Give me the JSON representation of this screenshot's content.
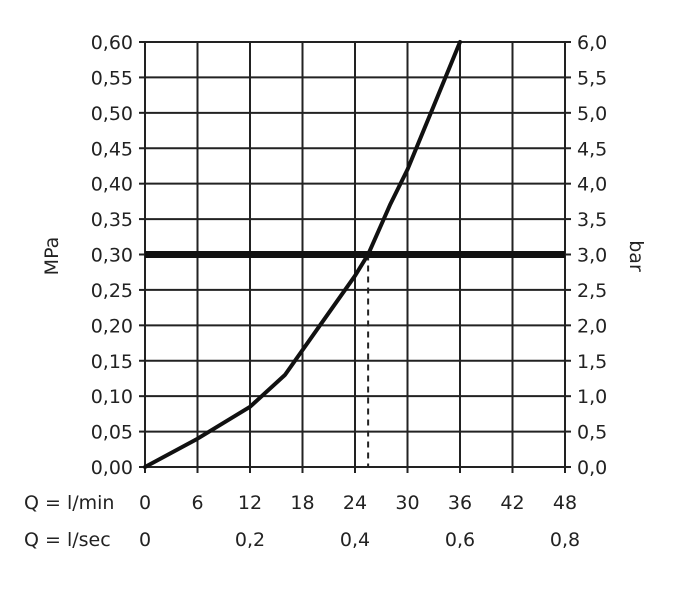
{
  "chart_data": {
    "type": "line",
    "xlabel_primary": "Q = l/min",
    "xlabel_secondary": "Q = l/sec",
    "ylabel_left": "MPa",
    "ylabel_right": "bar",
    "xlim": [
      0,
      48
    ],
    "ylim": [
      0,
      0.6
    ],
    "grid": true,
    "x_ticks": [
      "0",
      "6",
      "12",
      "18",
      "24",
      "30",
      "36",
      "42",
      "48"
    ],
    "x_ticks_secondary": [
      {
        "x": 0,
        "label": "0"
      },
      {
        "x": 12,
        "label": "0,2"
      },
      {
        "x": 24,
        "label": "0,4"
      },
      {
        "x": 36,
        "label": "0,6"
      },
      {
        "x": 48,
        "label": "0,8"
      }
    ],
    "y_ticks_left": [
      "0,00",
      "0,05",
      "0,10",
      "0,15",
      "0,20",
      "0,25",
      "0,30",
      "0,35",
      "0,40",
      "0,45",
      "0,50",
      "0,55",
      "0,60"
    ],
    "y_ticks_right": [
      "0,0",
      "0,5",
      "1,0",
      "1,5",
      "2,0",
      "2,5",
      "3,0",
      "3,5",
      "4,0",
      "4,5",
      "5,0",
      "5,5",
      "6,0"
    ],
    "series": [
      {
        "x": [
          0,
          6,
          12,
          16,
          20,
          24,
          25.5,
          28,
          30,
          33,
          36
        ],
        "y": [
          0,
          0.04,
          0.085,
          0.13,
          0.2,
          0.27,
          0.3,
          0.37,
          0.42,
          0.51,
          0.6
        ]
      }
    ],
    "reference_line": {
      "y": 0.3
    },
    "marker_x": 25.5
  }
}
